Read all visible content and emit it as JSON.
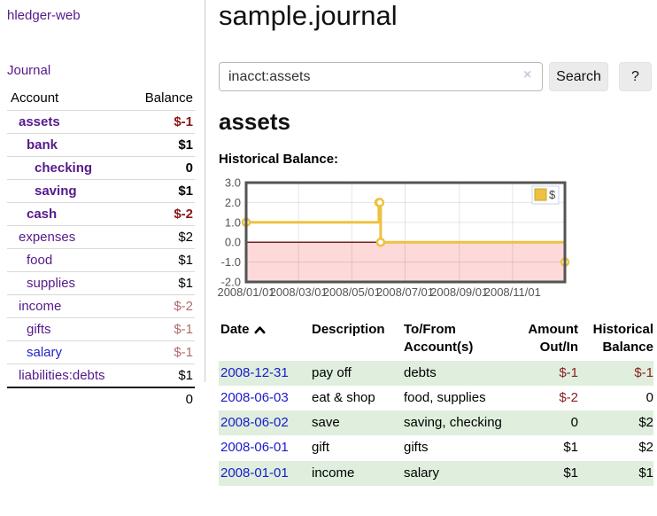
{
  "colors": {
    "link_purple": "#551a8b",
    "link_blue": "#1a1acc",
    "negative_strong": "#8b1515",
    "negative_soft": "#b26b6b",
    "row_green": "#dfeedd",
    "chart_gold": "#edc240",
    "chart_negative_fill": "#fdd9d9",
    "zero_line": "#7a1f1f"
  },
  "sidebar": {
    "app_title": "hledger-web",
    "nav_journal": "Journal",
    "accounts_table": {
      "header_account": "Account",
      "header_balance": "Balance",
      "rows": [
        {
          "account": "assets",
          "depth": 1,
          "bold": true,
          "balance": "$-1",
          "balance_style": "neg-strong"
        },
        {
          "account": "bank",
          "depth": 2,
          "bold": true,
          "balance": "$1",
          "balance_style": "pos"
        },
        {
          "account": "checking",
          "depth": 3,
          "bold": true,
          "balance": "0",
          "balance_style": "pos"
        },
        {
          "account": "saving",
          "depth": 3,
          "bold": true,
          "balance": "$1",
          "balance_style": "pos"
        },
        {
          "account": "cash",
          "depth": 2,
          "bold": true,
          "balance": "$-2",
          "balance_style": "neg-strong"
        },
        {
          "account": "expenses",
          "depth": 1,
          "bold": false,
          "balance": "$2",
          "balance_style": "pos"
        },
        {
          "account": "food",
          "depth": 2,
          "bold": false,
          "balance": "$1",
          "balance_style": "pos"
        },
        {
          "account": "supplies",
          "depth": 2,
          "bold": false,
          "balance": "$1",
          "balance_style": "pos"
        },
        {
          "account": "income",
          "depth": 1,
          "bold": false,
          "balance": "$-2",
          "balance_style": "neg-soft"
        },
        {
          "account": "gifts",
          "depth": 2,
          "bold": false,
          "balance": "$-1",
          "balance_style": "neg-soft"
        },
        {
          "account": "salary",
          "depth": 2,
          "bold": false,
          "balance": "$-1",
          "balance_style": "neg-soft",
          "link_color": "blue"
        },
        {
          "account": "liabilities:debts",
          "depth": 1,
          "bold": false,
          "balance": "$1",
          "balance_style": "pos"
        }
      ],
      "total": "0"
    }
  },
  "main": {
    "title": "sample.journal",
    "search": {
      "value": "inacct:assets",
      "clear_icon": "×",
      "search_button": "Search",
      "help_button": "?"
    },
    "account_heading": "assets",
    "chart_label": "Historical Balance:",
    "register_table": {
      "headers": {
        "date": "Date",
        "description": "Description",
        "accounts": "To/From Account(s)",
        "amount": "Amount Out/In",
        "balance": "Historical Balance"
      },
      "rows": [
        {
          "date": "2008-12-31",
          "description": "pay off",
          "accounts": "debts",
          "amount": "$-1",
          "amount_neg": true,
          "balance": "$-1",
          "balance_neg": true
        },
        {
          "date": "2008-06-03",
          "description": "eat & shop",
          "accounts": "food, supplies",
          "amount": "$-2",
          "amount_neg": true,
          "balance": "0",
          "balance_neg": false
        },
        {
          "date": "2008-06-02",
          "description": "save",
          "accounts": "saving, checking",
          "amount": "0",
          "amount_neg": false,
          "balance": "$2",
          "balance_neg": false
        },
        {
          "date": "2008-06-01",
          "description": "gift",
          "accounts": "gifts",
          "amount": "$1",
          "amount_neg": false,
          "balance": "$2",
          "balance_neg": false
        },
        {
          "date": "2008-01-01",
          "description": "income",
          "accounts": "salary",
          "amount": "$1",
          "amount_neg": false,
          "balance": "$1",
          "balance_neg": false
        }
      ]
    }
  },
  "chart_data": {
    "type": "line",
    "title": "Historical Balance:",
    "step": true,
    "series": [
      {
        "name": "$",
        "color": "#edc240",
        "points": [
          [
            "2008-01-01",
            1
          ],
          [
            "2008-06-01",
            2
          ],
          [
            "2008-06-02",
            2
          ],
          [
            "2008-06-03",
            0
          ],
          [
            "2008-12-31",
            -1
          ]
        ]
      }
    ],
    "xlim": [
      "2008-01-01",
      "2008-12-31"
    ],
    "ylim": [
      -2,
      3
    ],
    "x_ticks": [
      "2008/01/01",
      "2008/03/01",
      "2008/05/01",
      "2008/07/01",
      "2008/09/01",
      "2008/11/01"
    ],
    "y_ticks": [
      "3.0",
      "2.0",
      "1.0",
      "0.0",
      "-1.0",
      "-2.0"
    ],
    "grid": true,
    "negative_region_color": "#fdd9d9",
    "zero_line_color": "#7a1f1f",
    "legend": {
      "label": "$",
      "position": "top-right",
      "box_border": "#c9d3ee",
      "swatch_border": "#c8a62e"
    }
  }
}
